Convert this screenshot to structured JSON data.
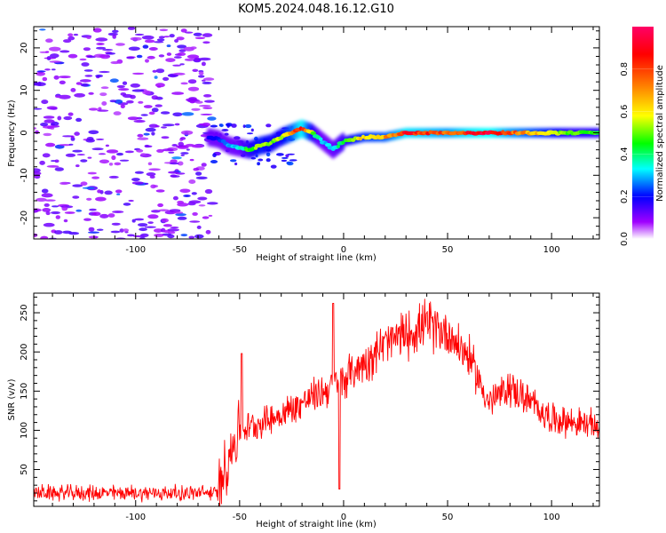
{
  "figure": {
    "title": "KOM5.2024.048.16.12.G10"
  },
  "chart_data": [
    {
      "type": "heatmap",
      "title": "KOM5.2024.048.16.12.G10",
      "xlabel": "Height of straight line (km)",
      "ylabel": "Frequency (Hz)",
      "xlim": [
        -149,
        123
      ],
      "ylim": [
        -25,
        25
      ],
      "x_ticks": [
        -100,
        -50,
        0,
        50,
        100
      ],
      "y_ticks": [
        -20,
        -10,
        0,
        10,
        20
      ],
      "colorbar": {
        "label": "Normalized spectral amplitude",
        "range": [
          0.0,
          1.0
        ],
        "ticks": [
          "0.0",
          "0.2",
          "0.4",
          "0.6",
          "0.8"
        ],
        "colors": [
          "#ffffff",
          "#a000ff",
          "#0000ff",
          "#00ffff",
          "#00ff00",
          "#ffff00",
          "#ff8000",
          "#ff0000",
          "#ff0066"
        ]
      },
      "ridge": {
        "x": [
          -65,
          -60,
          -55,
          -50,
          -45,
          -40,
          -35,
          -30,
          -25,
          -20,
          -15,
          -10,
          -5,
          0,
          5,
          10,
          20,
          30,
          40,
          50,
          60,
          70,
          80,
          90,
          100,
          110,
          123
        ],
        "y": [
          -1,
          -1.5,
          -3,
          -3.5,
          -4,
          -3,
          -2.5,
          -1,
          0,
          1,
          0,
          -2,
          -4,
          -2,
          -1.5,
          -1,
          -1,
          0,
          0,
          0,
          0,
          0,
          0,
          0,
          0,
          0,
          0
        ],
        "amplitude": [
          0.2,
          0.2,
          0.3,
          0.35,
          0.5,
          0.6,
          0.55,
          0.55,
          0.7,
          0.95,
          0.5,
          0.3,
          0.35,
          0.45,
          0.6,
          0.65,
          0.7,
          0.9,
          0.85,
          0.8,
          0.9,
          0.95,
          0.8,
          0.7,
          0.6,
          0.5,
          0.5
        ]
      },
      "noise_region_x": [
        -149,
        -63
      ],
      "noise_amplitude": 0.1
    },
    {
      "type": "line",
      "xlabel": "Height of straight line (km)",
      "ylabel": "SNR (v/v)",
      "xlim": [
        -149,
        123
      ],
      "ylim": [
        3,
        275
      ],
      "x_ticks": [
        -100,
        -50,
        0,
        50,
        100
      ],
      "y_ticks": [
        50,
        100,
        150,
        200,
        250
      ],
      "color": "#ff0000",
      "trend": {
        "x": [
          -149,
          -100,
          -60,
          -58,
          -50,
          -30,
          -10,
          0,
          20,
          40,
          50,
          60,
          70,
          80,
          100,
          123
        ],
        "y": [
          20,
          20,
          20,
          50,
          100,
          120,
          150,
          165,
          210,
          235,
          225,
          195,
          135,
          155,
          115,
          105
        ]
      },
      "spikes": [
        {
          "x": -49,
          "y": 198
        },
        {
          "x": -5,
          "y": 262
        },
        {
          "x": -2,
          "y": 25
        }
      ]
    }
  ]
}
